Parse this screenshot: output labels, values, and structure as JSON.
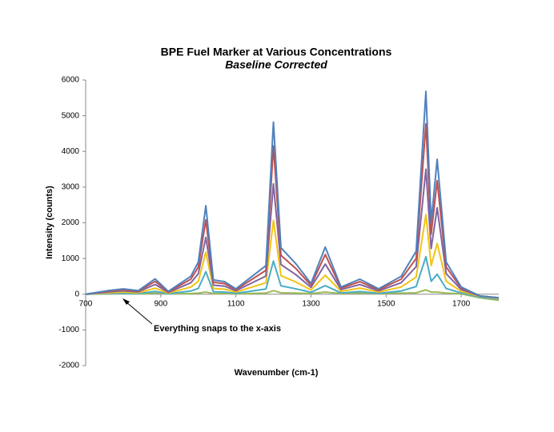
{
  "chart_data": {
    "type": "line",
    "title": "BPE Fuel Marker at Various Concentrations",
    "subtitle": "Baseline Corrected",
    "x_label": "Wavenumber (cm-1)",
    "y_label": "Intensity (counts)",
    "annotation": "Everything snaps to the x-axis",
    "x": [
      700,
      760,
      800,
      840,
      885,
      920,
      980,
      1000,
      1020,
      1040,
      1070,
      1100,
      1180,
      1200,
      1220,
      1260,
      1300,
      1338,
      1380,
      1430,
      1480,
      1540,
      1580,
      1606,
      1620,
      1636,
      1660,
      1700,
      1750,
      1800
    ],
    "series": [
      {
        "color": "#4f81bd",
        "values": [
          0,
          100,
          150,
          100,
          430,
          80,
          500,
          900,
          2480,
          400,
          350,
          150,
          800,
          4820,
          1300,
          850,
          300,
          1320,
          200,
          420,
          150,
          500,
          1200,
          5680,
          2000,
          3780,
          900,
          200,
          -50,
          -100
        ]
      },
      {
        "color": "#c0504d",
        "values": [
          0,
          85,
          125,
          85,
          360,
          65,
          420,
          760,
          2080,
          335,
          295,
          125,
          670,
          4150,
          1090,
          715,
          250,
          1110,
          170,
          350,
          125,
          420,
          1000,
          4770,
          1680,
          3180,
          760,
          170,
          -50,
          -100
        ]
      },
      {
        "color": "#8064a2",
        "values": [
          0,
          65,
          95,
          65,
          275,
          50,
          320,
          575,
          1590,
          255,
          225,
          95,
          510,
          3090,
          830,
          545,
          190,
          845,
          130,
          270,
          95,
          320,
          770,
          3500,
          1280,
          2420,
          575,
          130,
          -50,
          -100
        ]
      },
      {
        "color": "#f2c314",
        "values": [
          0,
          40,
          60,
          40,
          170,
          30,
          200,
          360,
          1180,
          160,
          140,
          60,
          320,
          2070,
          520,
          340,
          120,
          530,
          80,
          170,
          60,
          200,
          480,
          2230,
          800,
          1420,
          360,
          80,
          -60,
          -120
        ]
      },
      {
        "color": "#4bacc6",
        "values": [
          0,
          20,
          25,
          20,
          80,
          15,
          90,
          160,
          630,
          70,
          60,
          25,
          145,
          930,
          235,
          150,
          55,
          240,
          35,
          75,
          25,
          90,
          215,
          1050,
          360,
          560,
          160,
          35,
          -80,
          -140
        ]
      },
      {
        "color": "#9bbb59",
        "values": [
          0,
          10,
          20,
          10,
          30,
          10,
          20,
          30,
          60,
          20,
          20,
          10,
          30,
          100,
          40,
          30,
          20,
          60,
          20,
          30,
          20,
          30,
          40,
          120,
          60,
          60,
          30,
          10,
          -100,
          -170
        ]
      }
    ],
    "xlim": [
      700,
      1800
    ],
    "xticks": [
      700,
      900,
      1100,
      1300,
      1500,
      1700
    ],
    "ylim": [
      -2000,
      6000
    ],
    "yticks": [
      -2000,
      -1000,
      0,
      1000,
      2000,
      3000,
      4000,
      5000,
      6000
    ],
    "grid": false
  }
}
